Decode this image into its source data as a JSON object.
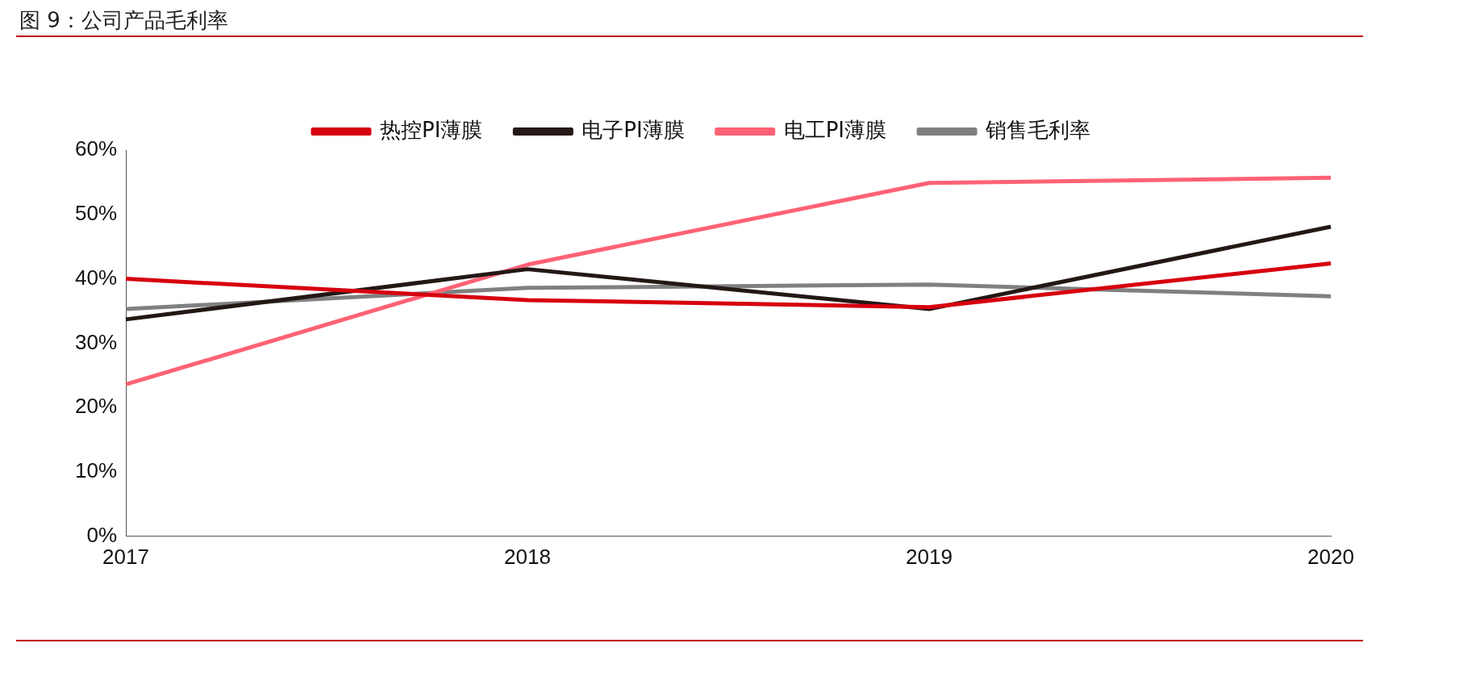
{
  "chart_data": {
    "type": "line",
    "title": "图 9：公司产品毛利率",
    "categories": [
      "2017",
      "2018",
      "2019",
      "2020"
    ],
    "series": [
      {
        "name": "热控PI薄膜",
        "color": "#d7000f",
        "values": [
          40.0,
          36.7,
          35.6,
          42.4
        ]
      },
      {
        "name": "电子PI薄膜",
        "color": "#231815",
        "values": [
          33.7,
          41.5,
          35.3,
          48.1
        ]
      },
      {
        "name": "电工PI薄膜",
        "color": "#ff6275",
        "values": [
          23.6,
          42.2,
          54.9,
          55.7
        ]
      },
      {
        "name": "销售毛利率",
        "color": "#808080",
        "values": [
          35.3,
          38.6,
          39.1,
          37.3
        ]
      }
    ],
    "ylim": [
      0,
      60
    ],
    "yticks": [
      {
        "value": 0,
        "label": "0%"
      },
      {
        "value": 10,
        "label": "10%"
      },
      {
        "value": 20,
        "label": "20%"
      },
      {
        "value": 30,
        "label": "30%"
      },
      {
        "value": 40,
        "label": "40%"
      },
      {
        "value": 50,
        "label": "50%"
      },
      {
        "value": 60,
        "label": "60%"
      }
    ],
    "grid": false,
    "legend": "top",
    "marker": "none",
    "line_style": "solid"
  }
}
